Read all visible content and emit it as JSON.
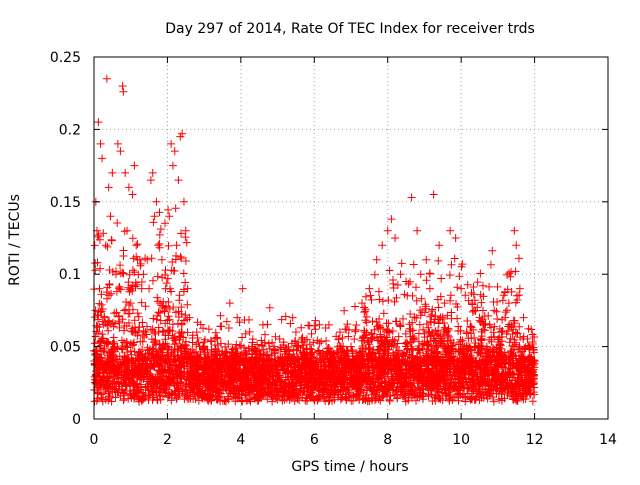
{
  "chart_data": {
    "type": "scatter",
    "title": "Day 297 of 2014, Rate Of TEC Index for receiver trds",
    "xlabel": "GPS time / hours",
    "ylabel": "ROTI / TECUs",
    "xlim": [
      0,
      14
    ],
    "ylim": [
      0,
      0.25
    ],
    "x_ticks": [
      0,
      2,
      4,
      6,
      8,
      10,
      12,
      14
    ],
    "x_tick_labels": [
      "0",
      "2",
      "4",
      "6",
      "8",
      "10",
      "12",
      "14"
    ],
    "y_ticks": [
      0,
      0.05,
      0.1,
      0.15,
      0.2,
      0.25
    ],
    "y_tick_labels": [
      "0",
      "0.05",
      "0.1",
      "0.15",
      "0.2",
      "0.25"
    ],
    "grid": true,
    "marker": "plus",
    "color": "#ff0000",
    "data_x_range": [
      0,
      12
    ],
    "series": [
      {
        "name": "ROTI",
        "points": [
          [
            0.02,
            0.02
          ],
          [
            0.05,
            0.15
          ],
          [
            0.08,
            0.13
          ],
          [
            0.12,
            0.205
          ],
          [
            0.15,
            0.09
          ],
          [
            0.18,
            0.19
          ],
          [
            0.22,
            0.18
          ],
          [
            0.28,
            0.07
          ],
          [
            0.32,
            0.12
          ],
          [
            0.35,
            0.235
          ],
          [
            0.4,
            0.16
          ],
          [
            0.45,
            0.14
          ],
          [
            0.5,
            0.17
          ],
          [
            0.55,
            0.05
          ],
          [
            0.6,
            0.1
          ],
          [
            0.65,
            0.19
          ],
          [
            0.72,
            0.185
          ],
          [
            0.78,
            0.23
          ],
          [
            0.8,
            0.226
          ],
          [
            0.85,
            0.17
          ],
          [
            0.9,
            0.13
          ],
          [
            0.95,
            0.16
          ],
          [
            1.0,
            0.08
          ],
          [
            1.05,
            0.155
          ],
          [
            1.1,
            0.175
          ],
          [
            1.15,
            0.12
          ],
          [
            1.2,
            0.06
          ],
          [
            1.25,
            0.11
          ],
          [
            1.3,
            0.09
          ],
          [
            1.35,
            0.1
          ],
          [
            1.4,
            0.06
          ],
          [
            1.45,
            0.11
          ],
          [
            1.5,
            0.09
          ],
          [
            1.55,
            0.165
          ],
          [
            1.6,
            0.17
          ],
          [
            1.65,
            0.14
          ],
          [
            1.7,
            0.15
          ],
          [
            1.75,
            0.12
          ],
          [
            1.8,
            0.08
          ],
          [
            1.85,
            0.11
          ],
          [
            1.9,
            0.06
          ],
          [
            1.95,
            0.09
          ],
          [
            2.0,
            0.05
          ],
          [
            2.05,
            0.14
          ],
          [
            2.1,
            0.19
          ],
          [
            2.15,
            0.175
          ],
          [
            2.2,
            0.185
          ],
          [
            2.25,
            0.12
          ],
          [
            2.3,
            0.165
          ],
          [
            2.35,
            0.195
          ],
          [
            2.4,
            0.197
          ],
          [
            2.45,
            0.15
          ],
          [
            2.5,
            0.13
          ],
          [
            2.55,
            0.09
          ],
          [
            2.6,
            0.07
          ],
          [
            2.8,
            0.06
          ],
          [
            3.0,
            0.05
          ],
          [
            3.2,
            0.04
          ],
          [
            3.5,
            0.045
          ],
          [
            3.7,
            0.08
          ],
          [
            3.9,
            0.07
          ],
          [
            4.05,
            0.09
          ],
          [
            4.3,
            0.05
          ],
          [
            4.6,
            0.065
          ],
          [
            4.9,
            0.05
          ],
          [
            5.2,
            0.045
          ],
          [
            5.5,
            0.06
          ],
          [
            5.8,
            0.055
          ],
          [
            6.1,
            0.04
          ],
          [
            6.4,
            0.065
          ],
          [
            6.7,
            0.06
          ],
          [
            7.0,
            0.05
          ],
          [
            7.3,
            0.08
          ],
          [
            7.5,
            0.09
          ],
          [
            7.7,
            0.11
          ],
          [
            7.85,
            0.12
          ],
          [
            8.0,
            0.13
          ],
          [
            8.1,
            0.138
          ],
          [
            8.2,
            0.125
          ],
          [
            8.35,
            0.1
          ],
          [
            8.5,
            0.095
          ],
          [
            8.65,
            0.153
          ],
          [
            8.8,
            0.13
          ],
          [
            8.9,
            0.1
          ],
          [
            9.05,
            0.11
          ],
          [
            9.15,
            0.09
          ],
          [
            9.25,
            0.155
          ],
          [
            9.4,
            0.12
          ],
          [
            9.55,
            0.08
          ],
          [
            9.7,
            0.13
          ],
          [
            9.85,
            0.125
          ],
          [
            10.0,
            0.09
          ],
          [
            10.15,
            0.06
          ],
          [
            10.3,
            0.08
          ],
          [
            10.5,
            0.07
          ],
          [
            10.7,
            0.05
          ],
          [
            10.9,
            0.075
          ],
          [
            11.1,
            0.06
          ],
          [
            11.3,
            0.08
          ],
          [
            11.45,
            0.13
          ],
          [
            11.5,
            0.12
          ],
          [
            11.6,
            0.09
          ],
          [
            11.7,
            0.07
          ],
          [
            11.85,
            0.05
          ],
          [
            12.0,
            0.04
          ]
        ]
      }
    ]
  }
}
